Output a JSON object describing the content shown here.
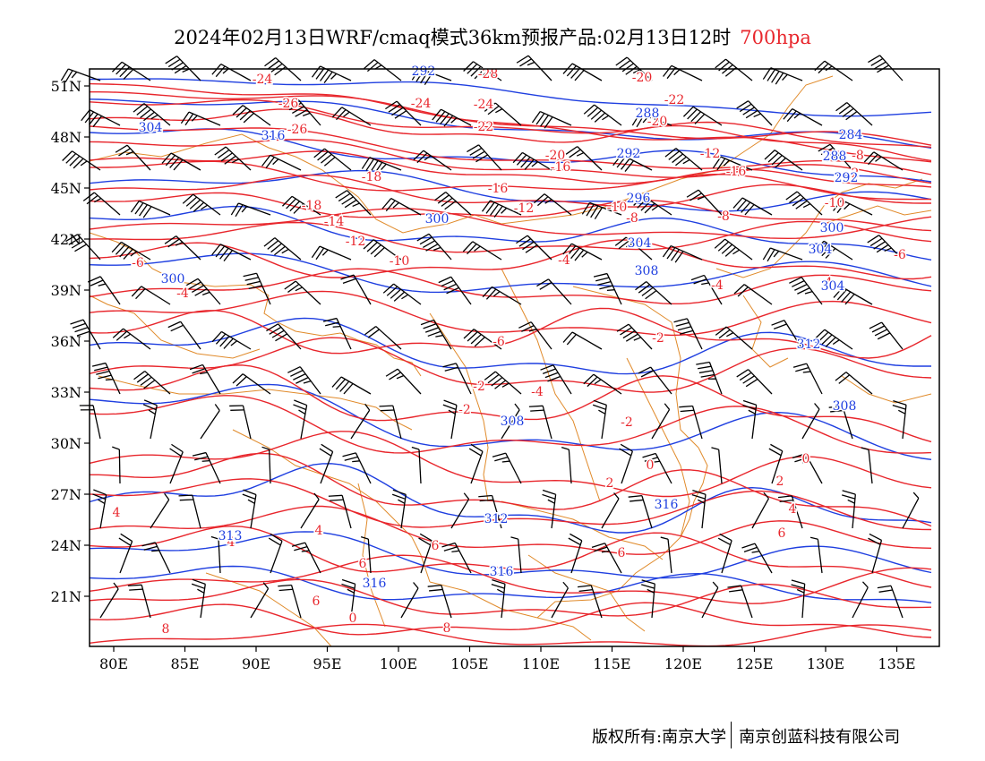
{
  "title": {
    "main": "2024年02月13日WRF/cmaq模式36km预报产品:02月13日12时",
    "level": "700hpa"
  },
  "axes": {
    "lon_ticks": [
      "80E",
      "85E",
      "90E",
      "95E",
      "100E",
      "105E",
      "110E",
      "115E",
      "120E",
      "125E",
      "130E",
      "135E"
    ],
    "lat_ticks": [
      "51N",
      "48N",
      "45N",
      "42N",
      "39N",
      "36N",
      "33N",
      "30N",
      "27N",
      "24N",
      "21N"
    ]
  },
  "colors": {
    "temperature": "#e8262c",
    "height": "#1f3fe0",
    "border": "#e08a2a",
    "wind": "#000000"
  },
  "temperature_labels": [
    "-24",
    "-26",
    "-26",
    "-24",
    "-28",
    "-20",
    "-24",
    "-22",
    "-20",
    "-22",
    "-20",
    "-16",
    "-18",
    "-16",
    "-12",
    "-18",
    "-16",
    "-12",
    "-10",
    "-8",
    "-8",
    "-14",
    "-12",
    "-10",
    "-6",
    "-4",
    "-4",
    "-6",
    "-4",
    "-4",
    "-6",
    "-2",
    "-2",
    "-2",
    "-4",
    "-2",
    "0",
    "0",
    "2",
    "2",
    "4",
    "4",
    "4",
    "4",
    "6",
    "6",
    "6",
    "6",
    "6",
    "8",
    "8",
    "0",
    "-10",
    "-8",
    "2"
  ],
  "height_labels": [
    "292",
    "288",
    "304",
    "316",
    "292",
    "284",
    "288",
    "292",
    "296",
    "304",
    "300",
    "300",
    "304",
    "308",
    "300",
    "304",
    "308",
    "312",
    "308",
    "312",
    "313",
    "316",
    "316",
    "316"
  ],
  "footer": {
    "copyright": "版权所有:南京大学",
    "company": "南京创蓝科技有限公司"
  }
}
